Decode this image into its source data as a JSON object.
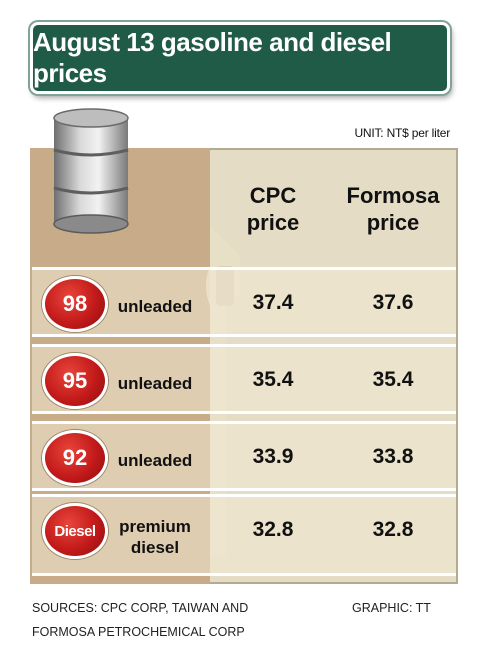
{
  "title": "August 13 gasoline and diesel prices",
  "unit": "UNIT: NT$ per liter",
  "columns": {
    "cpc": "CPC\nprice",
    "formosa": "Formosa\nprice"
  },
  "rows": [
    {
      "badge": "98",
      "label": "unleaded",
      "cpc": "37.4",
      "formosa": "37.6"
    },
    {
      "badge": "95",
      "label": "unleaded",
      "cpc": "35.4",
      "formosa": "35.4"
    },
    {
      "badge": "92",
      "label": "unleaded",
      "cpc": "33.9",
      "formosa": "33.8"
    },
    {
      "badge": "Diesel",
      "label": "premium\ndiesel",
      "cpc": "32.8",
      "formosa": "32.8"
    }
  ],
  "sources": "SOURCES: CPC CORP, TAIWAN AND\nFORMOSA PETROCHEMICAL CORP",
  "credit": "GRAPHIC: TT",
  "chart_data": {
    "type": "table",
    "title": "August 13 gasoline and diesel prices",
    "unit": "NT$ per liter",
    "columns": [
      "CPC price",
      "Formosa price"
    ],
    "rows": [
      {
        "fuel": "98 unleaded",
        "values": [
          37.4,
          37.6
        ]
      },
      {
        "fuel": "95 unleaded",
        "values": [
          35.4,
          35.4
        ]
      },
      {
        "fuel": "92 unleaded",
        "values": [
          33.9,
          33.8
        ]
      },
      {
        "fuel": "Diesel premium diesel",
        "values": [
          32.8,
          32.8
        ]
      }
    ]
  },
  "colors": {
    "title_bg": "#1f5b47",
    "panel_bg": "#e4dcc4",
    "brown_column": "#c8ab88",
    "badge_red": "#c21a1a"
  },
  "icons": [
    "oil-barrel-icon",
    "fuel-pump-nozzle-icon"
  ]
}
